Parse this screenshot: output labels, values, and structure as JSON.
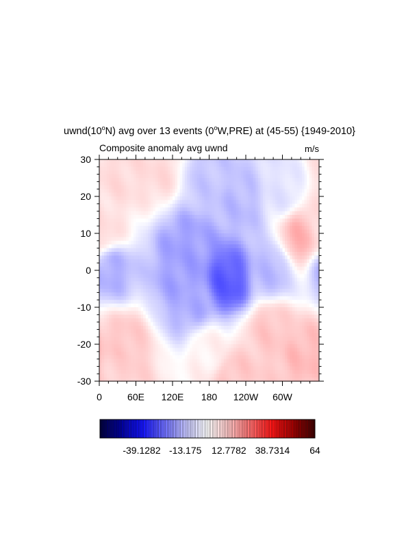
{
  "chart_data": {
    "type": "heatmap",
    "title": "uwnd(10°N) avg over 13 events (0°W,PRE) at (45-55) {1949-2010}",
    "title_parts": {
      "pre": "uwnd(10",
      "sup1": "o",
      "mid": "N) avg over 13 events (0",
      "sup2": "o",
      "post": "W,PRE) at (45-55) {1949-2010}"
    },
    "subtitle": "Composite anomaly avg uwnd",
    "units": "m/s",
    "x_ticks": [
      "0",
      "60E",
      "120E",
      "180",
      "120W",
      "60W"
    ],
    "x_tick_positions_deg": [
      0,
      60,
      120,
      180,
      240,
      300
    ],
    "xlim": [
      0,
      360
    ],
    "y_ticks": [
      "30",
      "20",
      "10",
      "0",
      "-10",
      "-20",
      "-30"
    ],
    "y_tick_values": [
      30,
      20,
      10,
      0,
      -10,
      -20,
      -30
    ],
    "ylim": [
      -30,
      30
    ],
    "colorbar": {
      "min": -64,
      "max": 64,
      "labels": [
        "-39.1282",
        "-13.175",
        "12.7782",
        "38.7314",
        "64"
      ],
      "label_values": [
        -39.1282,
        -13.175,
        12.7782,
        38.7314,
        64
      ],
      "colormap": [
        "#00003d",
        "#0000a0",
        "#1414ff",
        "#6c6cff",
        "#c4c4ff",
        "#ffffff",
        "#ffc4c4",
        "#ff6c6c",
        "#ff1414",
        "#a00000",
        "#3d0000"
      ]
    },
    "field_features": [
      {
        "lon": 30,
        "lat": 27,
        "value": 8
      },
      {
        "lon": 95,
        "lat": 27,
        "value": 8
      },
      {
        "lon": 180,
        "lat": 25,
        "value": -12
      },
      {
        "lon": 230,
        "lat": 18,
        "value": -14
      },
      {
        "lon": 300,
        "lat": 22,
        "value": -6
      },
      {
        "lon": 10,
        "lat": 11,
        "value": 7
      },
      {
        "lon": 330,
        "lat": 9,
        "value": 15
      },
      {
        "lon": 140,
        "lat": 6,
        "value": -18
      },
      {
        "lon": 210,
        "lat": -3,
        "value": -28
      },
      {
        "lon": 140,
        "lat": -2,
        "value": -18
      },
      {
        "lon": 20,
        "lat": 0,
        "value": -16
      },
      {
        "lon": 280,
        "lat": 0,
        "value": -14
      },
      {
        "lon": 150,
        "lat": -9,
        "value": -16
      },
      {
        "lon": 40,
        "lat": -20,
        "value": 12
      },
      {
        "lon": 280,
        "lat": -16,
        "value": 12
      },
      {
        "lon": 340,
        "lat": -23,
        "value": 14
      },
      {
        "lon": 180,
        "lat": -22,
        "value": 3
      },
      {
        "lon": 30,
        "lat": -27,
        "value": 10
      },
      {
        "lon": 220,
        "lat": -29,
        "value": 12
      }
    ]
  }
}
